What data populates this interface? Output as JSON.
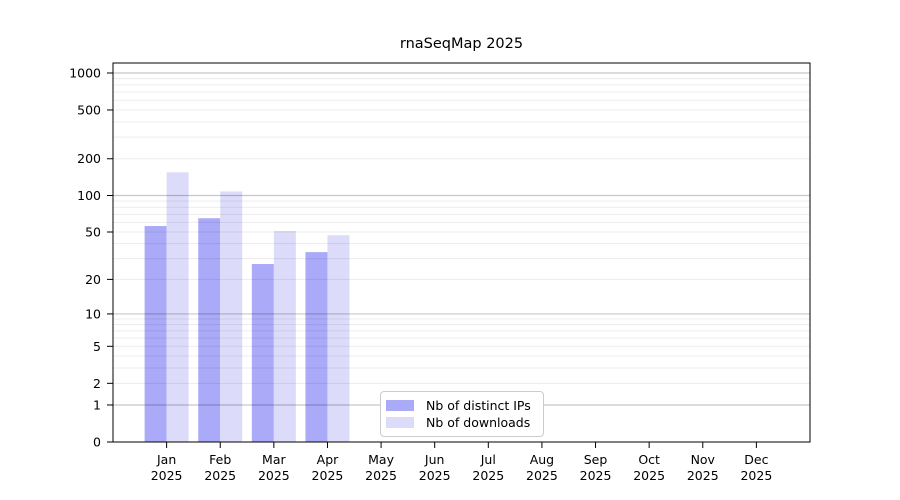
{
  "chart_data": {
    "type": "bar",
    "title": "rnaSeqMap 2025",
    "categories": [
      "Jan 2025",
      "Feb 2025",
      "Mar 2025",
      "Apr 2025",
      "May 2025",
      "Jun 2025",
      "Jul 2025",
      "Aug 2025",
      "Sep 2025",
      "Oct 2025",
      "Nov 2025",
      "Dec 2025"
    ],
    "series": [
      {
        "name": "Nb of distinct IPs",
        "color": "#aaaaf8",
        "values": [
          56,
          65,
          27,
          34,
          0,
          0,
          0,
          0,
          0,
          0,
          0,
          0
        ]
      },
      {
        "name": "Nb of downloads",
        "color": "#dcdcfa",
        "values": [
          155,
          108,
          51,
          47,
          0,
          0,
          0,
          0,
          0,
          0,
          0,
          0
        ]
      }
    ],
    "y_axis": {
      "scale": "log10(value+1)",
      "ticks": [
        0,
        1,
        2,
        5,
        10,
        20,
        50,
        100,
        200,
        500,
        1000
      ],
      "major_gridlines": [
        1,
        10,
        100,
        1000
      ],
      "range": [
        0,
        1000
      ]
    },
    "x_axis": {
      "tick_line2": "2025"
    },
    "legend": {
      "position": "inside-bottom-center"
    },
    "grid": true
  }
}
